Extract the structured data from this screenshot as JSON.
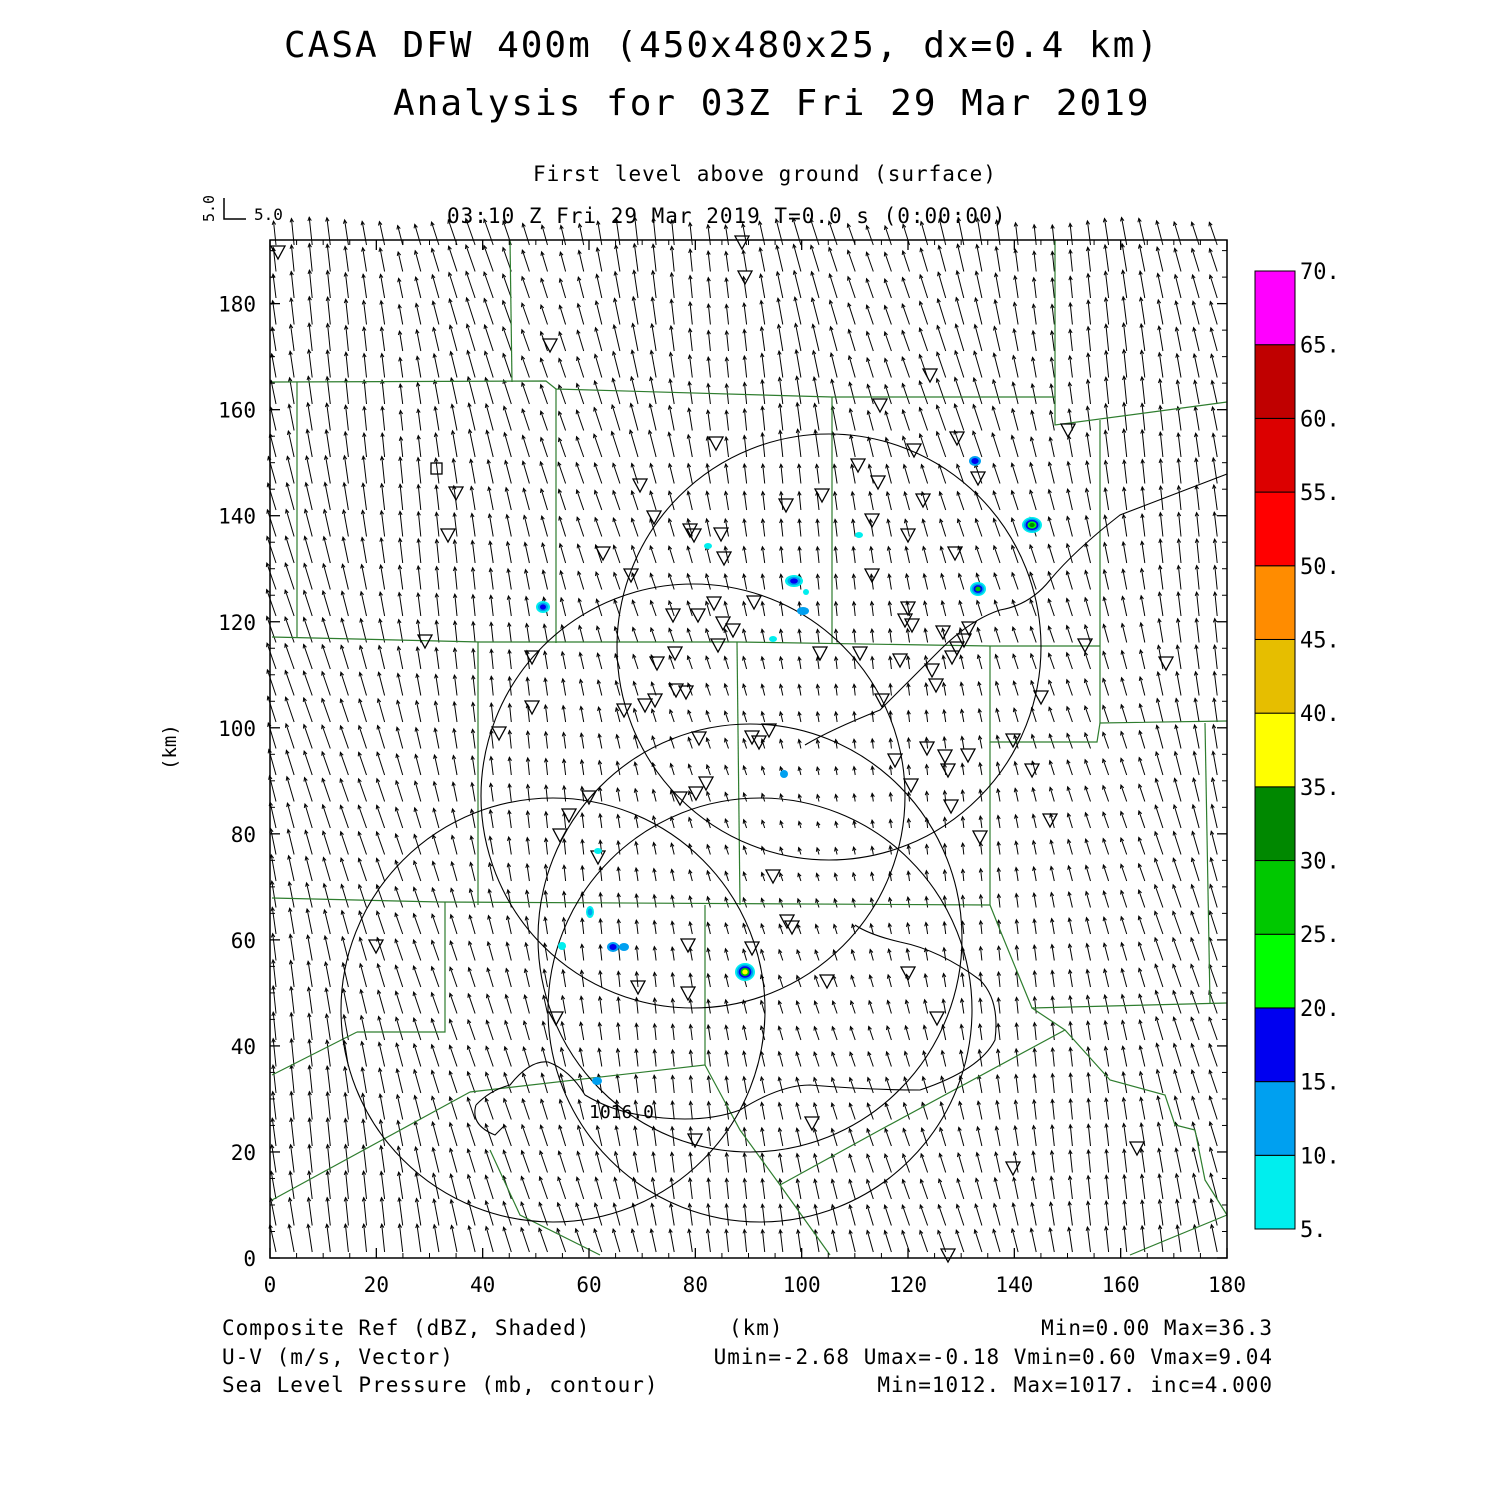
{
  "header": {
    "title_line1": "CASA DFW 400m (450x480x25, dx=0.4 km)",
    "title_line2": "Analysis for 03Z Fri 29 Mar 2019",
    "level": "First level above ground (surface)",
    "time": "03:10 Z Fri 29 Mar 2019   T=0.0 s (0:00:00)",
    "vector_ref_x": "5.0",
    "vector_ref_y": "5.0"
  },
  "axes": {
    "ylabel": "(km)",
    "xlabel": "(km)",
    "x_ticks": [
      "0",
      "20",
      "40",
      "60",
      "80",
      "100",
      "120",
      "140",
      "160",
      "180"
    ],
    "y_ticks": [
      "0",
      "20",
      "40",
      "60",
      "80",
      "100",
      "120",
      "140",
      "160",
      "180"
    ],
    "x_range": [
      0,
      180
    ],
    "y_range": [
      0,
      192
    ]
  },
  "colorbar": {
    "labels": [
      "5.",
      "10.",
      "15.",
      "20.",
      "25.",
      "30.",
      "35.",
      "40.",
      "45.",
      "50.",
      "55.",
      "60.",
      "65.",
      "70."
    ],
    "colors": [
      "#00eeee",
      "#00a0f0",
      "#0000f0",
      "#00ff00",
      "#00c800",
      "#008800",
      "#ffff00",
      "#e6be00",
      "#ff8c00",
      "#ff0000",
      "#dc0000",
      "#c00000",
      "#ff00ff"
    ]
  },
  "contour_labels": [
    "1016.0"
  ],
  "footer": {
    "field1": "Composite Ref (dBZ, Shaded)",
    "field2": "U-V (m/s, Vector)",
    "field3": "Sea Level Pressure (mb, contour)",
    "units": "(km)",
    "stats1": "Min=0.00 Max=36.3",
    "stats2": "Umin=-2.68 Umax=-0.18 Vmin=0.60 Vmax=9.04",
    "stats3": "Min=1012. Max=1017. inc=4.000"
  }
}
